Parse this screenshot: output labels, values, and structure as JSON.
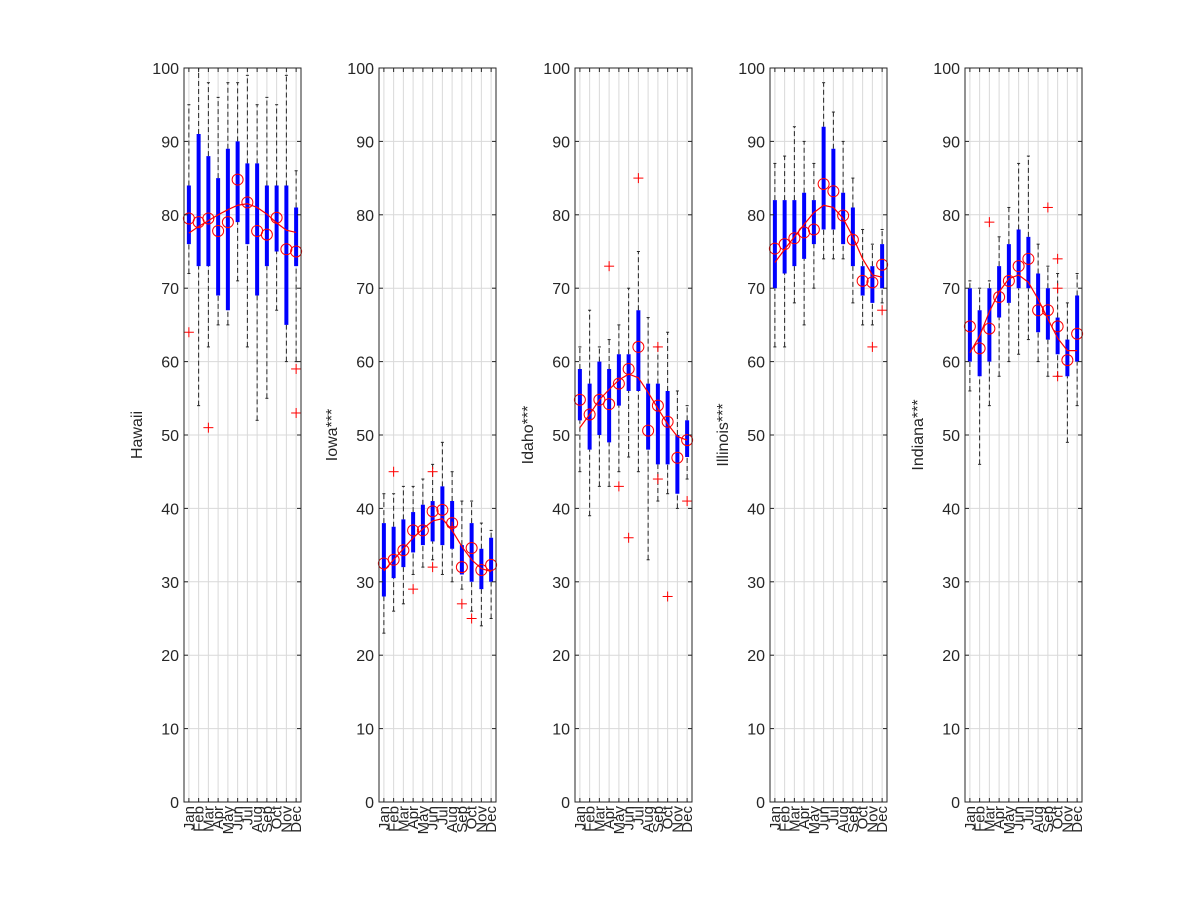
{
  "figure": {
    "background": "#ffffff",
    "axis_color": "#262626",
    "grid_color": "#d9d9d9"
  },
  "chart_data": [
    {
      "type": "box",
      "ylabel": "Hawaii",
      "categories": [
        "Jan",
        "Feb",
        "Mar",
        "Apr",
        "May",
        "Jun",
        "Jul",
        "Aug",
        "Sep",
        "Oct",
        "Nov",
        "Dec"
      ],
      "ylim": [
        0,
        100
      ],
      "yticks": [
        0,
        10,
        20,
        30,
        40,
        50,
        60,
        70,
        80,
        90,
        100
      ],
      "grid": true,
      "q1": [
        76,
        73,
        73,
        69,
        67,
        79,
        76,
        69,
        73,
        75,
        65,
        73
      ],
      "q3": [
        84,
        91,
        88,
        85,
        89,
        90,
        87,
        87,
        84,
        84,
        84,
        81
      ],
      "wlow": [
        72,
        54,
        62,
        65,
        65,
        71,
        62,
        52,
        55,
        67,
        60,
        60
      ],
      "whigh": [
        95,
        100,
        98,
        96,
        98,
        98,
        99,
        95,
        96,
        95,
        99,
        86
      ],
      "means": [
        79.5,
        79,
        79.5,
        77.8,
        79,
        84.8,
        81.7,
        77.8,
        77.3,
        79.6,
        75.3,
        75
      ],
      "fit": [
        77.5,
        78.4,
        79.2,
        80,
        80.7,
        81.3,
        81.5,
        81,
        80.1,
        78.9,
        77.9,
        77.6
      ],
      "outliers": [
        [
          1,
          64
        ],
        [
          3,
          51
        ],
        [
          12,
          59
        ],
        [
          12,
          53
        ]
      ],
      "styles": {
        "box_color": "#0000ff",
        "whisker_color": "#262626",
        "mean_color": "#ff0000",
        "fit_color": "#ff0000",
        "outlier_color": "#ff0000"
      }
    },
    {
      "type": "box",
      "ylabel": "Iowa***",
      "categories": [
        "Jan",
        "Feb",
        "Mar",
        "Apr",
        "May",
        "Jun",
        "Jul",
        "Aug",
        "Sep",
        "Oct",
        "Nov",
        "Dec"
      ],
      "ylim": [
        0,
        100
      ],
      "yticks": [
        0,
        10,
        20,
        30,
        40,
        50,
        60,
        70,
        80,
        90,
        100
      ],
      "grid": true,
      "q1": [
        28,
        30.5,
        32,
        34,
        35,
        35.5,
        35,
        34.5,
        31,
        30,
        29,
        30
      ],
      "q3": [
        38,
        37.5,
        38.5,
        39.5,
        40.5,
        41,
        43,
        41,
        35,
        38,
        34.5,
        36
      ],
      "wlow": [
        23,
        26,
        27,
        31,
        32,
        33,
        31,
        30,
        29,
        26,
        24,
        25
      ],
      "whigh": [
        42,
        42,
        43,
        43,
        44,
        46,
        49,
        45,
        41,
        41,
        38,
        37
      ],
      "means": [
        32.5,
        33,
        34.3,
        37,
        37,
        39.6,
        39.8,
        38,
        32,
        34.6,
        31.6,
        32.3
      ],
      "fit": [
        31.5,
        33,
        34.5,
        36,
        37.2,
        38.3,
        38.6,
        37,
        34.8,
        33,
        31.8,
        31.4
      ],
      "outliers": [
        [
          2,
          45
        ],
        [
          4,
          29
        ],
        [
          6,
          45
        ],
        [
          6,
          32
        ],
        [
          8,
          37.5
        ],
        [
          9,
          27
        ],
        [
          10,
          25
        ]
      ],
      "styles": {
        "box_color": "#0000ff",
        "whisker_color": "#262626",
        "mean_color": "#ff0000",
        "fit_color": "#ff0000",
        "outlier_color": "#ff0000"
      }
    },
    {
      "type": "box",
      "ylabel": "Idaho***",
      "categories": [
        "Jan",
        "Feb",
        "Mar",
        "Apr",
        "May",
        "Jun",
        "Jul",
        "Aug",
        "Sep",
        "Oct",
        "Nov",
        "Dec"
      ],
      "ylim": [
        0,
        100
      ],
      "yticks": [
        0,
        10,
        20,
        30,
        40,
        50,
        60,
        70,
        80,
        90,
        100
      ],
      "grid": true,
      "q1": [
        52,
        48,
        50,
        49,
        54,
        56,
        56,
        48,
        46,
        46,
        42,
        47
      ],
      "q3": [
        59,
        57,
        60,
        59,
        61,
        61,
        67,
        57,
        57,
        56,
        50,
        52
      ],
      "wlow": [
        45,
        39,
        43,
        43,
        45,
        47,
        45,
        33,
        41,
        42,
        40,
        44
      ],
      "whigh": [
        62,
        67,
        62,
        63,
        65,
        70,
        75,
        66,
        62,
        64,
        56,
        54
      ],
      "means": [
        54.8,
        52.8,
        54.8,
        54.2,
        57,
        59,
        62,
        50.6,
        54,
        51.8,
        46.9,
        49.3
      ],
      "fit": [
        51,
        52.8,
        54.8,
        56.2,
        57.5,
        58.3,
        57.8,
        55.8,
        53.6,
        51.5,
        49.8,
        49.3
      ],
      "outliers": [
        [
          4,
          73
        ],
        [
          5,
          43
        ],
        [
          6,
          36
        ],
        [
          7,
          85
        ],
        [
          9,
          44
        ],
        [
          9,
          62
        ],
        [
          10,
          28
        ],
        [
          12,
          41
        ]
      ],
      "styles": {
        "box_color": "#0000ff",
        "whisker_color": "#262626",
        "mean_color": "#ff0000",
        "fit_color": "#ff0000",
        "outlier_color": "#ff0000"
      }
    },
    {
      "type": "box",
      "ylabel": "Illinois***",
      "categories": [
        "Jan",
        "Feb",
        "Mar",
        "Apr",
        "May",
        "Jun",
        "Jul",
        "Aug",
        "Sep",
        "Oct",
        "Nov",
        "Dec"
      ],
      "ylim": [
        0,
        100
      ],
      "yticks": [
        0,
        10,
        20,
        30,
        40,
        50,
        60,
        70,
        80,
        90,
        100
      ],
      "grid": true,
      "q1": [
        70,
        72,
        73,
        74,
        76,
        78,
        78,
        76,
        73,
        69,
        68,
        70
      ],
      "q3": [
        82,
        82,
        82,
        83,
        82,
        92,
        89,
        83,
        81,
        73,
        73,
        76
      ],
      "wlow": [
        62,
        62,
        68,
        65,
        70,
        74,
        74,
        74,
        68,
        65,
        65,
        68
      ],
      "whigh": [
        87,
        88,
        92,
        90,
        87,
        98,
        94,
        90,
        85,
        78,
        76,
        78
      ],
      "means": [
        75.4,
        76,
        76.8,
        77.6,
        78,
        84.2,
        83.2,
        79.9,
        76.6,
        71,
        70.8,
        73.2
      ],
      "fit": [
        73.5,
        75.3,
        77,
        78.7,
        80.3,
        81.3,
        81,
        79.5,
        77,
        74,
        71.8,
        71.5
      ],
      "outliers": [
        [
          11,
          62
        ],
        [
          12,
          67
        ]
      ],
      "styles": {
        "box_color": "#0000ff",
        "whisker_color": "#262626",
        "mean_color": "#ff0000",
        "fit_color": "#ff0000",
        "outlier_color": "#ff0000"
      }
    },
    {
      "type": "box",
      "ylabel": "Indiana***",
      "categories": [
        "Jan",
        "Feb",
        "Mar",
        "Apr",
        "May",
        "Jun",
        "Jul",
        "Aug",
        "Sep",
        "Oct",
        "Nov",
        "Dec"
      ],
      "ylim": [
        0,
        100
      ],
      "yticks": [
        0,
        10,
        20,
        30,
        40,
        50,
        60,
        70,
        80,
        90,
        100
      ],
      "grid": true,
      "q1": [
        60,
        58,
        60,
        66,
        68,
        70,
        70,
        64,
        63,
        61,
        58,
        60
      ],
      "q3": [
        70,
        67,
        70,
        73,
        76,
        78,
        77,
        72,
        70,
        66,
        63,
        69
      ],
      "wlow": [
        56,
        46,
        54,
        58,
        60,
        61,
        63,
        60,
        58,
        58,
        49,
        54
      ],
      "whigh": [
        71,
        70,
        71,
        77,
        81,
        87,
        88,
        76,
        73,
        72,
        68,
        72
      ],
      "means": [
        64.8,
        61.8,
        64.5,
        68.8,
        71,
        73,
        74,
        67,
        67,
        64.8,
        60.2,
        63.8
      ],
      "fit": [
        61.2,
        63.5,
        66.8,
        69.5,
        71.3,
        71.8,
        70.8,
        68.5,
        65.8,
        63.2,
        61.5,
        61.5
      ],
      "outliers": [
        [
          3,
          79
        ],
        [
          9,
          81
        ],
        [
          10,
          74
        ],
        [
          10,
          70
        ],
        [
          10,
          58
        ]
      ],
      "styles": {
        "box_color": "#0000ff",
        "whisker_color": "#262626",
        "mean_color": "#ff0000",
        "fit_color": "#ff0000",
        "outlier_color": "#ff0000"
      }
    }
  ]
}
